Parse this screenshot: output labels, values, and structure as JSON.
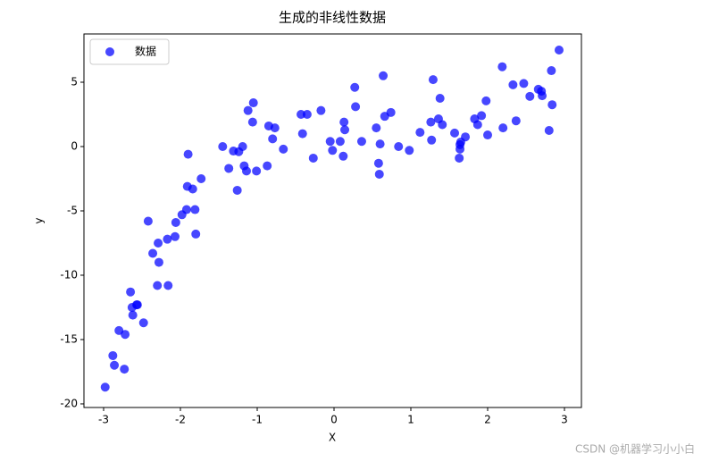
{
  "chart_data": {
    "type": "scatter",
    "title": "生成的非线性数据",
    "xlabel": "X",
    "ylabel": "y",
    "xlim": [
      -3.256,
      3.221
    ],
    "ylim": [
      -20.28,
      8.75
    ],
    "xticks": [
      -3,
      -2,
      -1,
      0,
      1,
      2,
      3
    ],
    "yticks": [
      -20,
      -15,
      -10,
      -5,
      0,
      5
    ],
    "legend": "upper left",
    "series": [
      {
        "name": "数据",
        "color": "#0000ff",
        "x": [
          -2.98,
          -2.88,
          -2.86,
          -2.73,
          -2.8,
          -2.72,
          -2.65,
          -2.63,
          -2.62,
          -2.57,
          -2.56,
          -2.48,
          -2.42,
          -2.36,
          -2.3,
          -2.29,
          -2.28,
          -2.17,
          -2.16,
          -2.07,
          -2.06,
          -1.98,
          -1.92,
          -1.91,
          -1.9,
          -1.84,
          -1.81,
          -1.8,
          -1.73,
          -1.45,
          -1.37,
          -1.31,
          -1.26,
          -1.24,
          -1.19,
          -1.17,
          -1.14,
          -1.12,
          -1.06,
          -1.05,
          -1.01,
          -0.87,
          -0.85,
          -0.8,
          -0.77,
          -0.66,
          -0.43,
          -0.41,
          -0.35,
          -0.27,
          -0.17,
          -0.05,
          -0.02,
          0.08,
          0.12,
          0.13,
          0.14,
          0.27,
          0.28,
          0.36,
          0.55,
          0.58,
          0.59,
          0.6,
          0.64,
          0.66,
          0.74,
          0.84,
          0.98,
          1.12,
          1.26,
          1.27,
          1.29,
          1.36,
          1.38,
          1.41,
          1.57,
          1.63,
          1.64,
          1.65,
          1.64,
          1.71,
          1.83,
          1.87,
          1.92,
          1.98,
          2.0,
          2.19,
          2.2,
          2.33,
          2.37,
          2.47,
          2.55,
          2.66,
          2.7,
          2.71,
          2.8,
          2.83,
          2.84,
          2.93
        ],
        "values": [
          -18.7,
          -16.25,
          -17.0,
          -17.3,
          -14.3,
          -14.6,
          -11.3,
          -12.5,
          -13.1,
          -12.3,
          -12.3,
          -13.7,
          -5.8,
          -8.3,
          -10.8,
          -7.5,
          -9.0,
          -7.2,
          -10.8,
          -7.0,
          -5.9,
          -5.3,
          -4.9,
          -3.1,
          -0.6,
          -3.3,
          -4.9,
          -6.8,
          -2.5,
          0.0,
          -1.7,
          -0.35,
          -3.4,
          -0.4,
          0.0,
          -1.5,
          -1.9,
          2.8,
          1.9,
          3.4,
          -1.9,
          -1.5,
          1.6,
          0.6,
          1.45,
          -0.2,
          2.5,
          1.0,
          2.5,
          -0.9,
          2.8,
          0.4,
          -0.3,
          0.4,
          -0.75,
          1.9,
          1.3,
          4.6,
          3.1,
          0.4,
          1.45,
          -1.3,
          -2.15,
          0.2,
          5.5,
          2.35,
          2.65,
          0.0,
          -0.3,
          1.1,
          1.9,
          0.5,
          5.2,
          2.15,
          3.75,
          1.7,
          1.05,
          -0.9,
          0.15,
          0.35,
          -0.2,
          0.75,
          2.15,
          1.7,
          2.4,
          3.55,
          0.9,
          6.2,
          1.45,
          4.8,
          2.0,
          4.9,
          3.9,
          4.45,
          4.3,
          3.95,
          1.25,
          5.9,
          3.25,
          7.5
        ]
      }
    ]
  },
  "watermark": "CSDN @机器学习小小白"
}
